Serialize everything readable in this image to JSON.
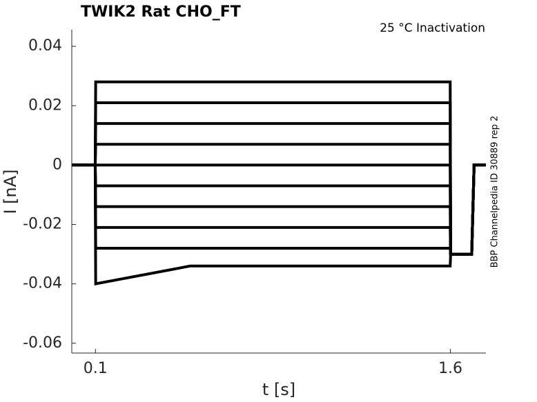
{
  "chart_data": {
    "type": "line",
    "title": "TWIK2  Rat  CHO_FT",
    "subtitle": "25 °C  Inactivation",
    "annotation": "BBP Channelpedia ID 30889 rep 2",
    "x_label": "t [s]",
    "y_label": "I [nA]",
    "x": [
      0,
      0.099,
      0.101,
      0.5,
      1.0,
      1.599,
      1.601,
      1.69,
      1.7,
      1.75
    ],
    "series": [
      {
        "color": "#000000",
        "values": [
          0,
          0,
          0.028,
          0.028,
          0.028,
          0.028,
          -0.03,
          -0.03,
          0,
          0
        ]
      },
      {
        "color": "#000000",
        "values": [
          0,
          0,
          0.021,
          0.021,
          0.021,
          0.021,
          -0.03,
          -0.03,
          0,
          0
        ]
      },
      {
        "color": "#000000",
        "values": [
          0,
          0,
          0.014,
          0.014,
          0.014,
          0.014,
          -0.03,
          -0.03,
          0,
          0
        ]
      },
      {
        "color": "#000000",
        "values": [
          0,
          0,
          0.007,
          0.007,
          0.007,
          0.007,
          -0.03,
          -0.03,
          0,
          0
        ]
      },
      {
        "color": "#000000",
        "values": [
          0,
          0,
          0,
          0,
          0,
          0,
          -0.03,
          -0.03,
          0,
          0
        ]
      },
      {
        "color": "#000000",
        "values": [
          0,
          0,
          -0.007,
          -0.007,
          -0.007,
          -0.007,
          -0.03,
          -0.03,
          0,
          0
        ]
      },
      {
        "color": "#000000",
        "values": [
          0,
          0,
          -0.014,
          -0.014,
          -0.014,
          -0.014,
          -0.03,
          -0.03,
          0,
          0
        ]
      },
      {
        "color": "#000000",
        "values": [
          0,
          0,
          -0.021,
          -0.021,
          -0.021,
          -0.021,
          -0.03,
          -0.03,
          0,
          0
        ]
      },
      {
        "color": "#000000",
        "values": [
          0,
          0,
          -0.028,
          -0.028,
          -0.028,
          -0.028,
          -0.03,
          -0.03,
          0,
          0
        ]
      },
      {
        "color": "#000000",
        "values": [
          0,
          0,
          -0.04,
          -0.034,
          -0.034,
          -0.034,
          -0.03,
          -0.03,
          0,
          0
        ]
      }
    ],
    "xlim": [
      0,
      1.75
    ],
    "xticks": [
      0.1,
      1.6
    ],
    "ylim": [
      -0.0633,
      0.0456
    ],
    "yticks": [
      0.04,
      0.02,
      0,
      -0.02,
      -0.04,
      -0.06
    ],
    "grid": false
  }
}
